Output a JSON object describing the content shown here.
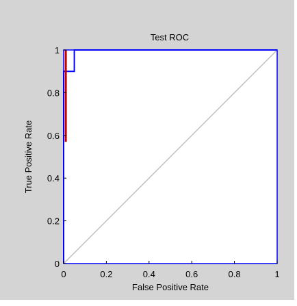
{
  "chart_data": {
    "type": "line",
    "title": "Test ROC",
    "xlabel": "False Positive Rate",
    "ylabel": "True Positive Rate",
    "xlim": [
      0,
      1
    ],
    "ylim": [
      0,
      1
    ],
    "xticks": [
      "0",
      "0.2",
      "0.4",
      "0.6",
      "0.8",
      "1"
    ],
    "yticks": [
      "0",
      "0.2",
      "0.4",
      "0.6",
      "0.8",
      "1"
    ],
    "grid": false,
    "legend": "none",
    "series": [
      {
        "color": "#0000ff",
        "x": [
          0,
          0,
          0.0,
          0.05,
          0.05,
          1
        ],
        "y": [
          0,
          0.9,
          0.9,
          0.9,
          1,
          1
        ]
      },
      {
        "color": "#cc0000",
        "x": [
          0.01,
          0.01
        ],
        "y": [
          0.57,
          1
        ]
      },
      {
        "color": "#bfbfbf",
        "x": [
          0,
          1
        ],
        "y": [
          0,
          1
        ]
      }
    ],
    "colors": {
      "figure_background": "#d4d4d4",
      "axes_background": "#ffffff",
      "axes_border": "#0000ff"
    }
  }
}
